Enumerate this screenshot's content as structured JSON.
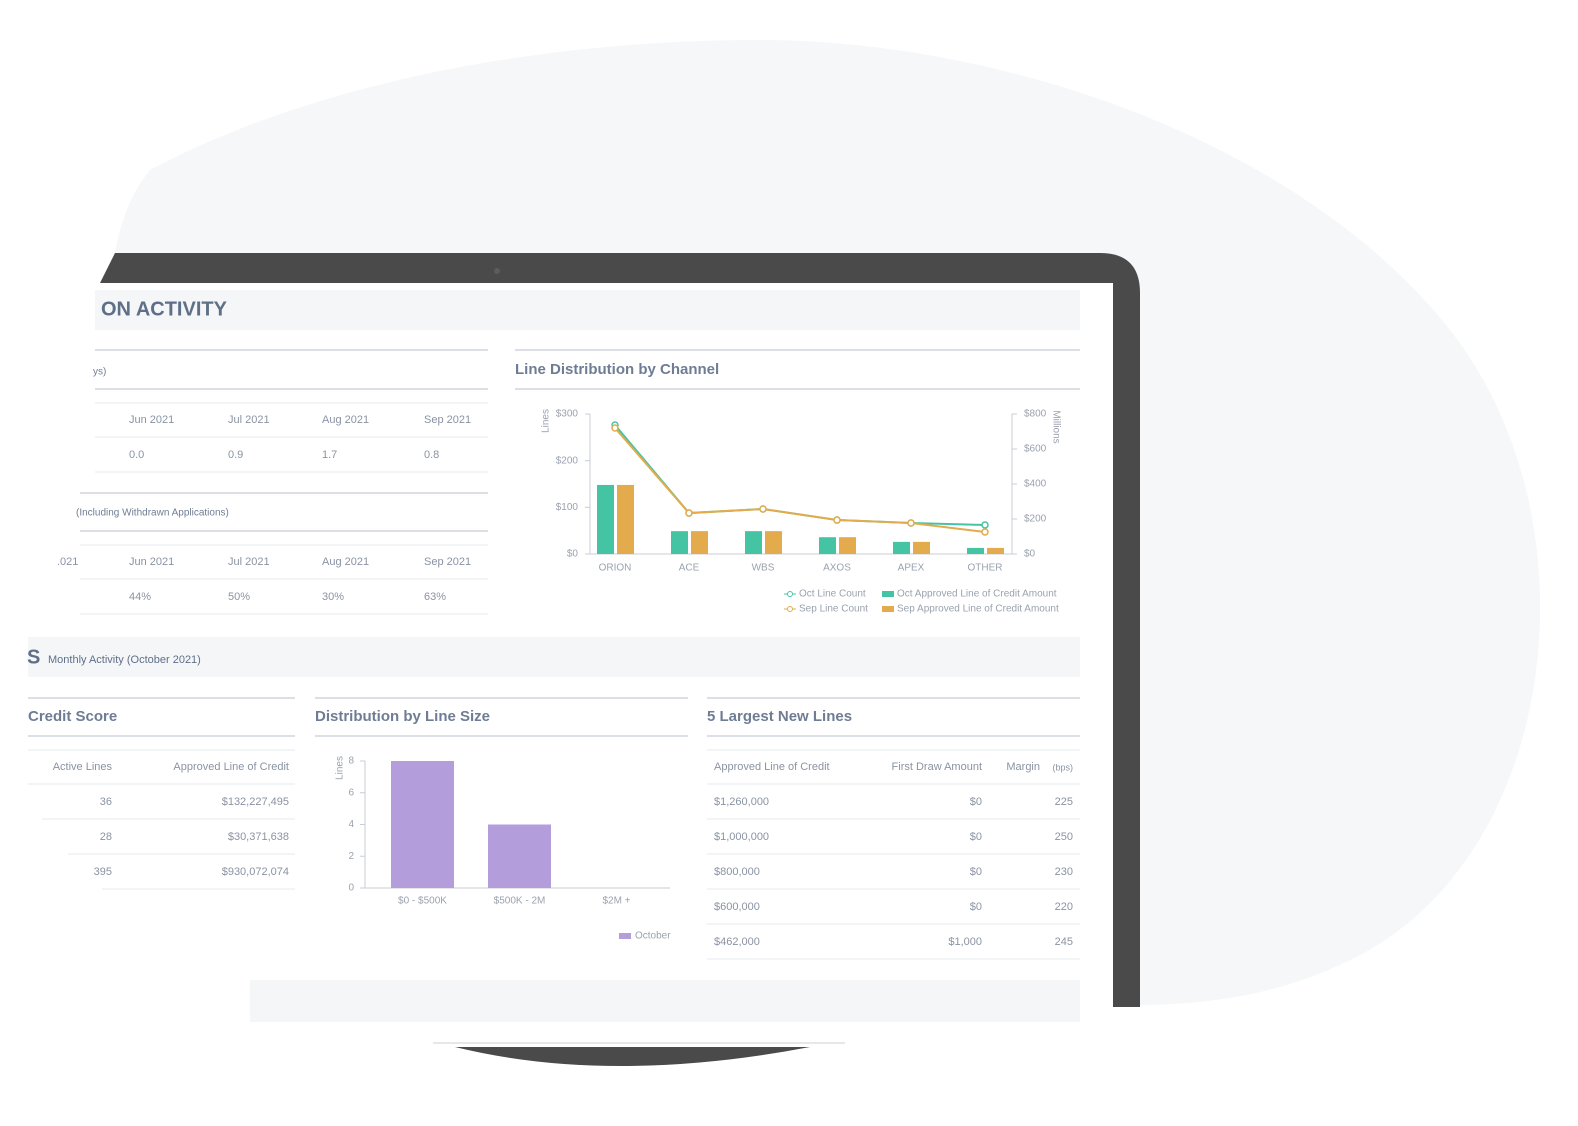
{
  "sections": [
    {
      "title": "ON ACTIVITY"
    },
    {
      "title": "S",
      "subtitle": "Monthly Activity (October 2021)"
    }
  ],
  "tables": [
    {
      "subtitle": "ys)",
      "columns": [
        "Jun 2021",
        "Jul 2021",
        "Aug 2021",
        "Sep 2021"
      ],
      "rows": [
        [
          "0.0",
          "0.9",
          "1.7",
          "0.8"
        ]
      ]
    },
    {
      "subtitle": "(Including Withdrawn Applications)",
      "lead_column": ".021",
      "columns": [
        "Jun 2021",
        "Jul 2021",
        "Aug 2021",
        "Sep 2021"
      ],
      "rows": [
        [
          "44%",
          "50%",
          "30%",
          "63%"
        ]
      ]
    },
    {
      "title": "Credit Score",
      "columns": [
        "Active Lines",
        "Approved Line of Credit"
      ],
      "rows": [
        [
          "36",
          "$132,227,495"
        ],
        [
          "28",
          "$30,371,638"
        ],
        [
          "395",
          "$930,072,074"
        ]
      ]
    },
    {
      "title": "5 Largest New Lines",
      "columns": [
        "Approved Line of Credit",
        "First Draw Amount",
        "Margin"
      ],
      "column_note": "(bps)",
      "rows": [
        [
          "$1,260,000",
          "$0",
          "225"
        ],
        [
          "$1,000,000",
          "$0",
          "250"
        ],
        [
          "$800,000",
          "$0",
          "230"
        ],
        [
          "$600,000",
          "$0",
          "220"
        ],
        [
          "$462,000",
          "$1,000",
          "245"
        ]
      ]
    }
  ],
  "chart_data": [
    {
      "type": "combo",
      "title": "Line Distribution by Channel",
      "y_label": "Lines",
      "y2_label": "Millions",
      "categories": [
        "ORION",
        "ACE",
        "WBS",
        "AXOS",
        "APEX",
        "OTHER"
      ],
      "ylim": [
        0,
        300
      ],
      "yticks": [
        {
          "value": 0,
          "label": "$0"
        },
        {
          "value": 100,
          "label": "$100"
        },
        {
          "value": 200,
          "label": "$200"
        },
        {
          "value": 300,
          "label": "$300"
        }
      ],
      "y2lim": [
        0,
        800
      ],
      "y2ticks": [
        {
          "value": 0,
          "label": "$0"
        },
        {
          "value": 200,
          "label": "$200"
        },
        {
          "value": 400,
          "label": "$400"
        },
        {
          "value": 600,
          "label": "$600"
        },
        {
          "value": 800,
          "label": "$800"
        }
      ],
      "series": [
        {
          "name": "Oct Line Count",
          "kind": "line",
          "axis": "y2",
          "color": "#45c4a4",
          "values": [
            737,
            234,
            257,
            194,
            177,
            166
          ]
        },
        {
          "name": "Sep Line Count",
          "kind": "line",
          "axis": "y2",
          "color": "#e3ab4c",
          "values": [
            720,
            234,
            257,
            194,
            177,
            126
          ]
        },
        {
          "name": "Oct Approved Line of Credit Amount",
          "kind": "bar",
          "color": "#45c4a4",
          "values": [
            148,
            49,
            49,
            36,
            26,
            13
          ]
        },
        {
          "name": "Sep Approved Line of Credit Amount",
          "kind": "bar",
          "color": "#e3ab4c",
          "values": [
            148,
            49,
            49,
            36,
            26,
            13
          ]
        }
      ]
    },
    {
      "type": "bar",
      "title": "Distribution by Line Size",
      "y_label": "Lines",
      "categories": [
        "$0 - $500K",
        "$500K - 2M",
        "$2M +"
      ],
      "ylim": [
        0,
        8
      ],
      "yticks": [
        0,
        2,
        4,
        6,
        8
      ],
      "series": [
        {
          "name": "October",
          "color": "#b39ddb",
          "values": [
            8,
            4,
            0
          ]
        }
      ]
    }
  ]
}
